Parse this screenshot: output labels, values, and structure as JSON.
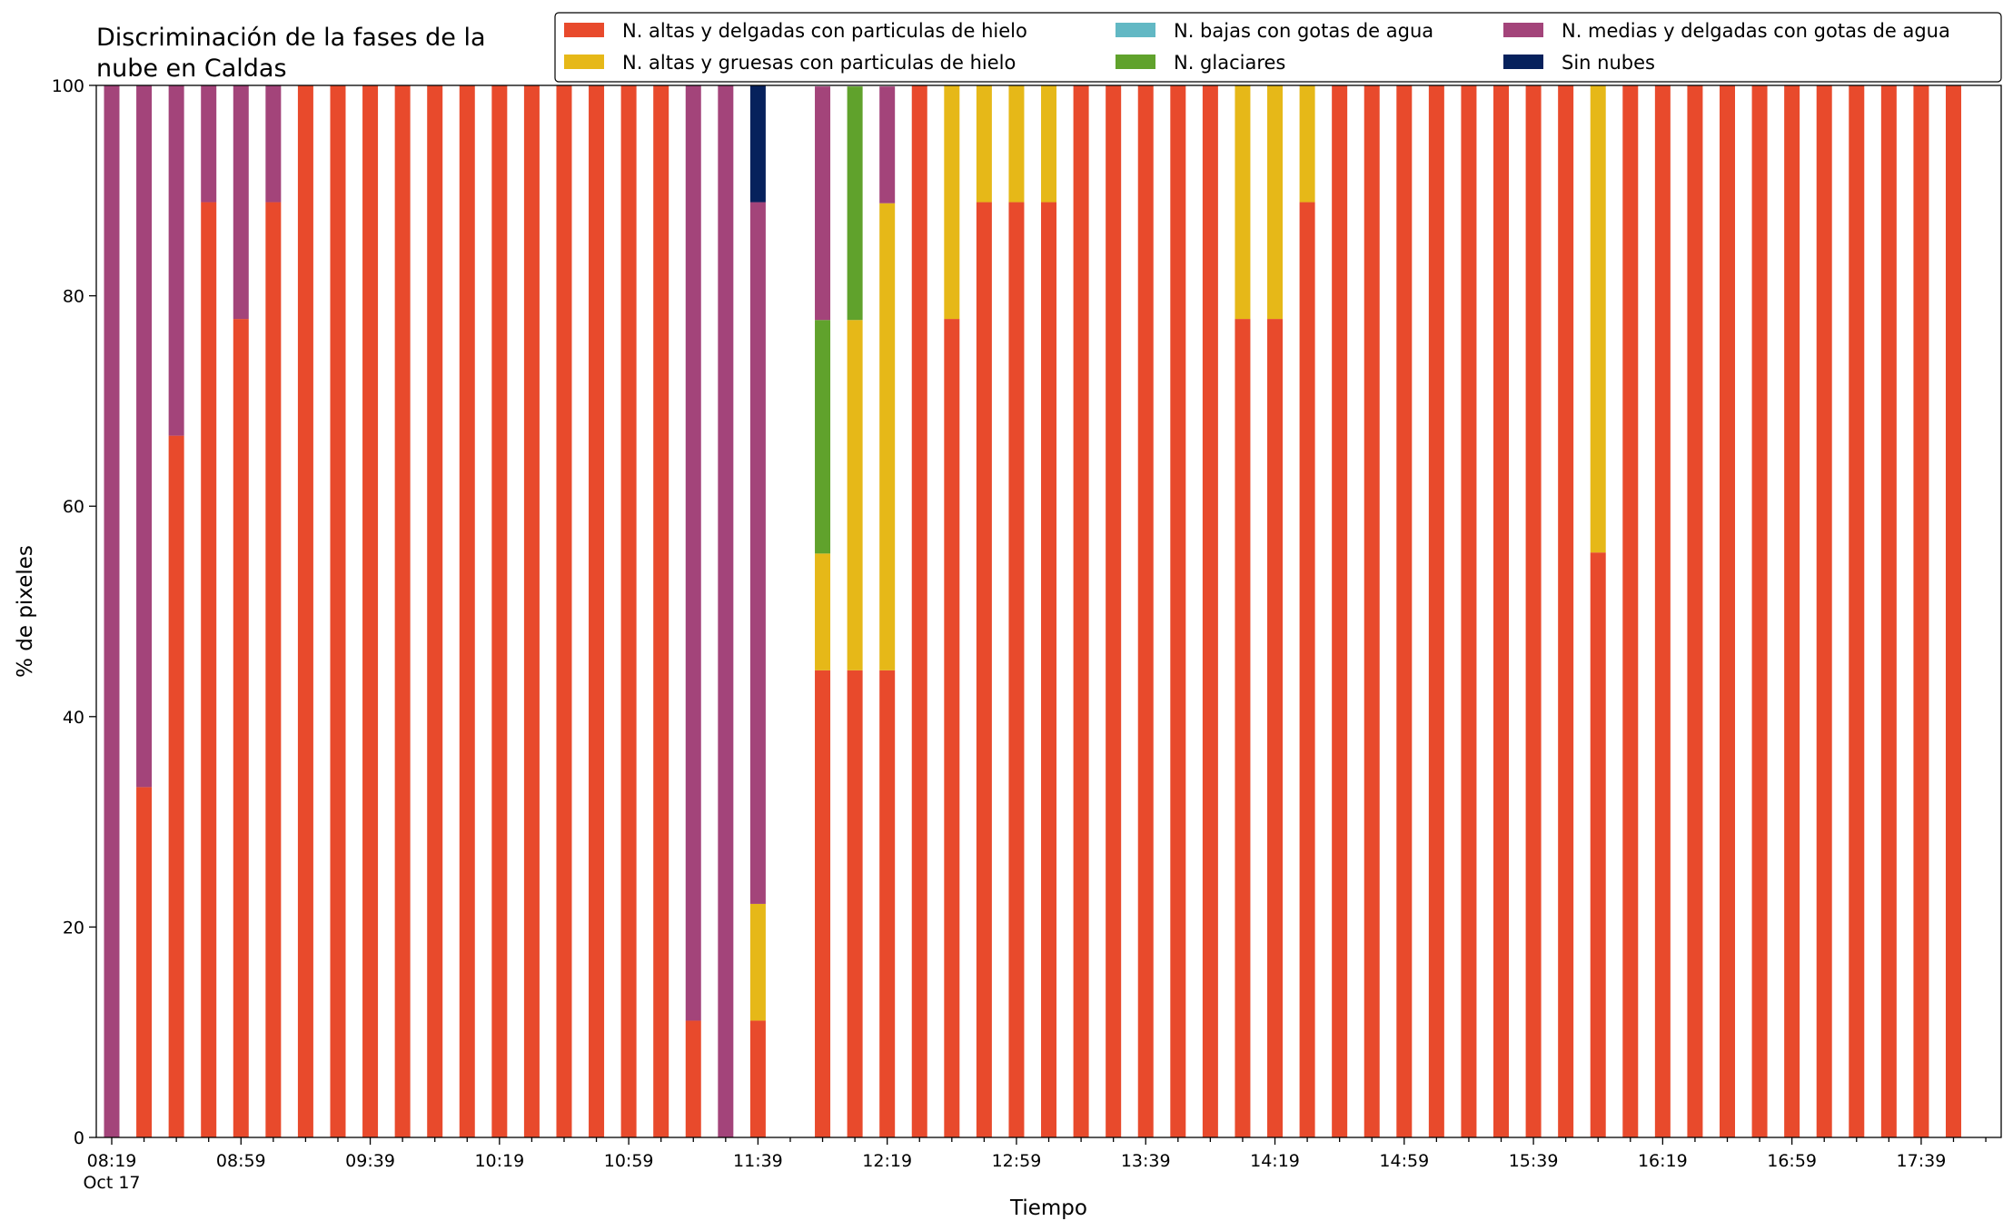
{
  "chart_data": {
    "type": "bar",
    "stacked": true,
    "title": "Discriminación de la fases de la nube en Caldas",
    "title_lines": [
      "Discriminación de la fases de la",
      "nube en Caldas"
    ],
    "xlabel": "Tiempo",
    "ylabel": "% de pixeles",
    "ylim": [
      0,
      100
    ],
    "yticks": [
      0,
      20,
      40,
      60,
      80,
      100
    ],
    "x_start": "Oct 17 08:19",
    "x_interval_minutes": 10,
    "x_tick_labels": [
      {
        "index": 0,
        "label": "08:19",
        "sub": "Oct 17"
      },
      {
        "index": 4,
        "label": "08:59"
      },
      {
        "index": 8,
        "label": "09:39"
      },
      {
        "index": 12,
        "label": "10:19"
      },
      {
        "index": 16,
        "label": "10:59"
      },
      {
        "index": 20,
        "label": "11:39"
      },
      {
        "index": 24,
        "label": "12:19"
      },
      {
        "index": 28,
        "label": "12:59"
      },
      {
        "index": 32,
        "label": "13:39"
      },
      {
        "index": 36,
        "label": "14:19"
      },
      {
        "index": 40,
        "label": "14:59"
      },
      {
        "index": 44,
        "label": "15:39"
      },
      {
        "index": 48,
        "label": "16:19"
      },
      {
        "index": 52,
        "label": "16:59"
      },
      {
        "index": 56,
        "label": "17:39"
      }
    ],
    "legend_position": "top-right",
    "legend": [
      {
        "name": "N. altas y delgadas con particulas de hielo",
        "color": "#E84A2C"
      },
      {
        "name": "N. altas y gruesas con particulas de hielo",
        "color": "#E6B818"
      },
      {
        "name": "N. bajas con gotas de agua",
        "color": "#62B8C4"
      },
      {
        "name": "N. glaciares",
        "color": "#60A22C"
      },
      {
        "name": "N. medias y delgadas con gotas de agua",
        "color": "#A3447A"
      },
      {
        "name": "Sin nubes",
        "color": "#06215C"
      }
    ],
    "series": [
      {
        "name": "N. altas y delgadas con particulas de hielo",
        "color": "#E84A2C",
        "values": [
          0,
          33.3,
          66.7,
          88.9,
          77.8,
          88.9,
          100,
          100,
          100,
          100,
          100,
          100,
          100,
          100,
          100,
          100,
          100,
          100,
          11.1,
          0,
          11.1,
          0,
          44.4,
          44.4,
          44.4,
          100,
          77.8,
          88.9,
          88.9,
          88.9,
          100,
          100,
          100,
          100,
          100,
          77.8,
          77.8,
          88.9,
          100,
          100,
          100,
          100,
          100,
          100,
          100,
          100,
          55.6,
          100,
          100,
          100,
          100,
          100,
          100,
          100,
          100,
          100,
          100,
          100
        ]
      },
      {
        "name": "N. altas y gruesas con particulas de hielo",
        "color": "#E6B818",
        "values": [
          0,
          0,
          0,
          0,
          0,
          0,
          0,
          0,
          0,
          0,
          0,
          0,
          0,
          0,
          0,
          0,
          0,
          0,
          0,
          0,
          11.1,
          0,
          11.1,
          33.3,
          44.4,
          0,
          22.2,
          11.1,
          11.1,
          11.1,
          0,
          0,
          0,
          0,
          0,
          22.2,
          22.2,
          11.1,
          0,
          0,
          0,
          0,
          0,
          0,
          0,
          0,
          44.4,
          0,
          0,
          0,
          0,
          0,
          0,
          0,
          0,
          0,
          0,
          0
        ]
      },
      {
        "name": "N. bajas con gotas de agua",
        "color": "#62B8C4",
        "values": [
          0,
          0,
          0,
          0,
          0,
          0,
          0,
          0,
          0,
          0,
          0,
          0,
          0,
          0,
          0,
          0,
          0,
          0,
          0,
          0,
          0,
          0,
          0,
          0,
          0,
          0,
          0,
          0,
          0,
          0,
          0,
          0,
          0,
          0,
          0,
          0,
          0,
          0,
          0,
          0,
          0,
          0,
          0,
          0,
          0,
          0,
          0,
          0,
          0,
          0,
          0,
          0,
          0,
          0,
          0,
          0,
          0,
          0
        ]
      },
      {
        "name": "N. glaciares",
        "color": "#60A22C",
        "values": [
          0,
          0,
          0,
          0,
          0,
          0,
          0,
          0,
          0,
          0,
          0,
          0,
          0,
          0,
          0,
          0,
          0,
          0,
          0,
          0,
          0,
          0,
          22.2,
          22.2,
          0,
          0,
          0,
          0,
          0,
          0,
          0,
          0,
          0,
          0,
          0,
          0,
          0,
          0,
          0,
          0,
          0,
          0,
          0,
          0,
          0,
          0,
          0,
          0,
          0,
          0,
          0,
          0,
          0,
          0,
          0,
          0,
          0,
          0
        ]
      },
      {
        "name": "N. medias y delgadas con gotas de agua",
        "color": "#A3447A",
        "values": [
          100,
          66.7,
          33.3,
          11.1,
          22.2,
          11.1,
          0,
          0,
          0,
          0,
          0,
          0,
          0,
          0,
          0,
          0,
          0,
          0,
          88.9,
          100,
          66.7,
          0,
          22.2,
          0,
          11.1,
          0,
          0,
          0,
          0,
          0,
          0,
          0,
          0,
          0,
          0,
          0,
          0,
          0,
          0,
          0,
          0,
          0,
          0,
          0,
          0,
          0,
          0,
          0,
          0,
          0,
          0,
          0,
          0,
          0,
          0,
          0,
          0,
          0
        ]
      },
      {
        "name": "Sin nubes",
        "color": "#06215C",
        "values": [
          0,
          0,
          0,
          0,
          0,
          0,
          0,
          0,
          0,
          0,
          0,
          0,
          0,
          0,
          0,
          0,
          0,
          0,
          0,
          0,
          11.1,
          0,
          0,
          0,
          0,
          0,
          0,
          0,
          0,
          0,
          0,
          0,
          0,
          0,
          0,
          0,
          0,
          0,
          0,
          0,
          0,
          0,
          0,
          0,
          0,
          0,
          0,
          0,
          0,
          0,
          0,
          0,
          0,
          0,
          0,
          0,
          0,
          0
        ]
      }
    ]
  }
}
